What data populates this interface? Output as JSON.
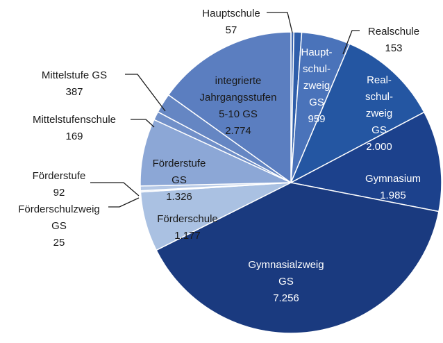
{
  "chart_data": {
    "type": "pie",
    "categories": [
      "Hauptschule",
      "Realschule",
      "Haupt-\nschul-\nzweig\nGS",
      "Real-\nschul-\nzweig\nGS",
      "Gymnasium",
      "Gymnasialzweig\nGS",
      "Förderschule",
      "Förderschulzweig\nGS",
      "Förderstufe",
      "Förderstufe\nGS",
      "Mittelstufenschule",
      "Mittelstufe GS",
      "integrierte\nJahrgangsstufen\n5-10 GS"
    ],
    "values": [
      57,
      153,
      959,
      2000,
      1985,
      7256,
      1177,
      25,
      92,
      1326,
      169,
      387,
      2774
    ],
    "value_labels": [
      "57",
      "153",
      "959",
      "2.000",
      "1.985",
      "7.256",
      "1.177",
      "25",
      "92",
      "1.326",
      "169",
      "387",
      "2.774"
    ],
    "colors": [
      "#3d66ac",
      "#2f5eaa",
      "#4a73ba",
      "#2456a2",
      "#1c418c",
      "#1a3a7f",
      "#aac1e2",
      "#c4d3ea",
      "#b5c8e6",
      "#8ca7d6",
      "#7190c9",
      "#6586c3",
      "#5b7ec0"
    ]
  }
}
